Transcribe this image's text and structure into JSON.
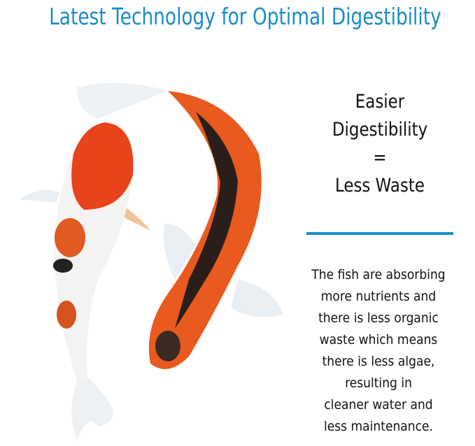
{
  "title": "Latest Technology for Optimal Digestibility",
  "headline": [
    "Easier",
    "Digestibility",
    "=",
    "Less Waste"
  ],
  "paragraph": [
    "The fish are absorbing",
    "more nutrients and",
    "there is less organic",
    "waste which means",
    "there is less algae,",
    "resulting in",
    "cleaner water and",
    "less maintenance."
  ],
  "colors": {
    "accent": "#1a8cc8"
  }
}
